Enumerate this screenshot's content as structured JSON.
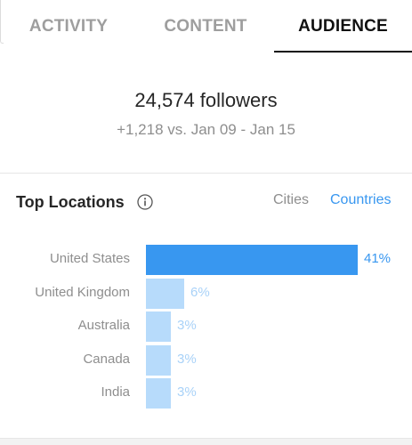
{
  "tabs": {
    "activity": "ACTIVITY",
    "content": "CONTENT",
    "audience": "AUDIENCE",
    "active": "audience"
  },
  "summary": {
    "followers": "24,574 followers",
    "change": "+1,218 vs. Jan 09 - Jan 15"
  },
  "top_locations": {
    "title": "Top Locations",
    "info_icon": "info-icon",
    "toggle_cities": "Cities",
    "toggle_countries": "Countries",
    "selected_toggle": "Countries",
    "rows": [
      {
        "label": "United States",
        "value_text": "41%",
        "value": 41
      },
      {
        "label": "United Kingdom",
        "value_text": "6%",
        "value": 6
      },
      {
        "label": "Australia",
        "value_text": "3%",
        "value": 3
      },
      {
        "label": "Canada",
        "value_text": "3%",
        "value": 3
      },
      {
        "label": "India",
        "value_text": "3%",
        "value": 3
      }
    ]
  },
  "colors": {
    "primary_bar": "#3897f0",
    "secondary_bar": "#b7dbfb",
    "primary_value_text": "#3897f0",
    "secondary_value_text": "#a9d2f8",
    "active_tab": "#111111",
    "inactive_tab": "#9e9e9e"
  }
}
